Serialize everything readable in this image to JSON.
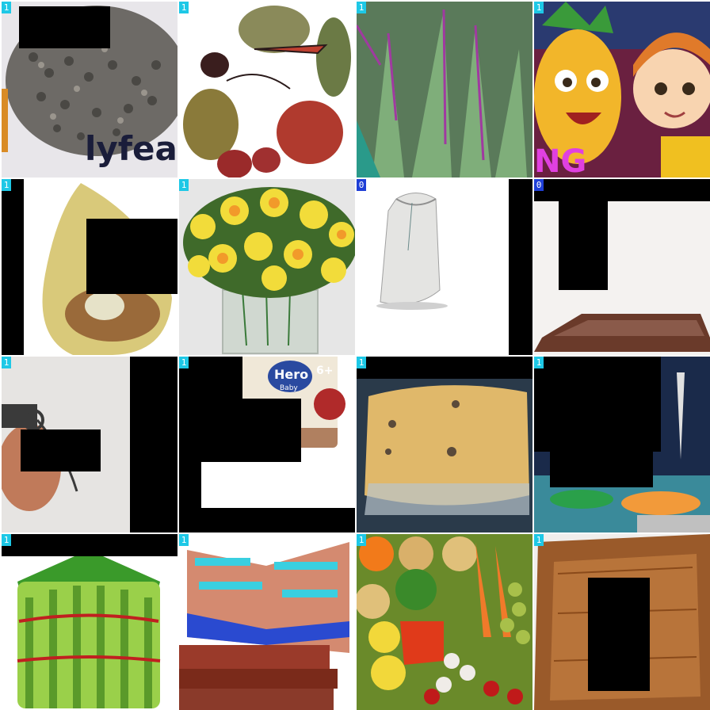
{
  "grid": {
    "labels": [
      "1",
      "1",
      "1",
      "1",
      "1",
      "1",
      "0",
      "0",
      "1",
      "1",
      "1",
      "1",
      "1",
      "1",
      "1",
      "1"
    ],
    "label_colors": {
      "1": "#1ec8e6",
      "0": "#1f3fd6"
    },
    "tiles": [
      {
        "subject": "seeds",
        "caption": "lyfeatly"
      },
      {
        "subject": "fruit-sketch"
      },
      {
        "subject": "aloe-leaves"
      },
      {
        "subject": "cartoon-pineapple",
        "caption": "NG"
      },
      {
        "subject": "mango"
      },
      {
        "subject": "daffodil-vase"
      },
      {
        "subject": "sack"
      },
      {
        "subject": "tray"
      },
      {
        "subject": "grenade"
      },
      {
        "subject": "baby-food-jar",
        "brand": "Hero",
        "sub": "Baby",
        "age": "6+"
      },
      {
        "subject": "bread"
      },
      {
        "subject": "kitchen-vegetables"
      },
      {
        "subject": "lucky-bamboo"
      },
      {
        "subject": "open-book"
      },
      {
        "subject": "vegetables"
      },
      {
        "subject": "wooden-tray"
      }
    ]
  }
}
